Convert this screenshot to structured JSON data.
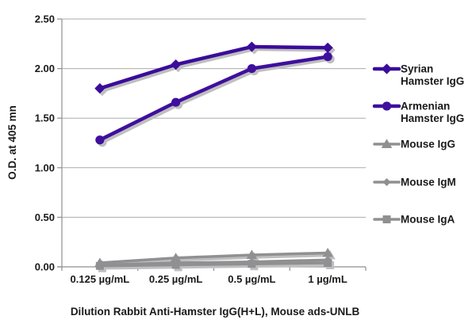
{
  "chart_data": {
    "type": "line",
    "title": "",
    "xlabel": "Dilution Rabbit Anti-Hamster IgG(H+L), Mouse ads-UNLB",
    "ylabel": "O.D. at 405 mn",
    "categories": [
      "0.125 µg/mL",
      "0.25 µg/mL",
      "0.5 µg/mL",
      "1 µg/mL"
    ],
    "ylim": [
      0,
      2.5
    ],
    "ytick_step": 0.5,
    "ytick_labels": [
      "0.00",
      "0.50",
      "1.00",
      "1.50",
      "2.00",
      "2.50"
    ],
    "grid": true,
    "legend_position": "right",
    "colors": {
      "grid": "#ababab",
      "axis": "#8f8f8f",
      "shadow": "#bfbfbf",
      "text": "#1a1a1a"
    },
    "series": [
      {
        "name": "Syrian Hamster IgG",
        "legend_lines": [
          "Syrian",
          "Hamster IgG"
        ],
        "marker": "diamond",
        "color": "#3a0c9b",
        "values": [
          1.8,
          2.04,
          2.22,
          2.21
        ]
      },
      {
        "name": "Armenian Hamster IgG",
        "legend_lines": [
          "Armenian",
          "Hamster IgG"
        ],
        "marker": "circle",
        "color": "#3f0f9e",
        "values": [
          1.28,
          1.66,
          2.0,
          2.12
        ]
      },
      {
        "name": "Mouse IgG",
        "legend_lines": [
          "Mouse IgG"
        ],
        "marker": "triangle",
        "color": "#909092",
        "values": [
          0.04,
          0.09,
          0.12,
          0.14
        ]
      },
      {
        "name": "Mouse IgM",
        "legend_lines": [
          "Mouse IgM"
        ],
        "marker": "diamond-small",
        "color": "#909092",
        "values": [
          0.02,
          0.04,
          0.05,
          0.07
        ]
      },
      {
        "name": "Mouse IgA",
        "legend_lines": [
          "Mouse IgA"
        ],
        "marker": "square",
        "color": "#909092",
        "values": [
          0.01,
          0.02,
          0.03,
          0.04
        ]
      }
    ]
  }
}
